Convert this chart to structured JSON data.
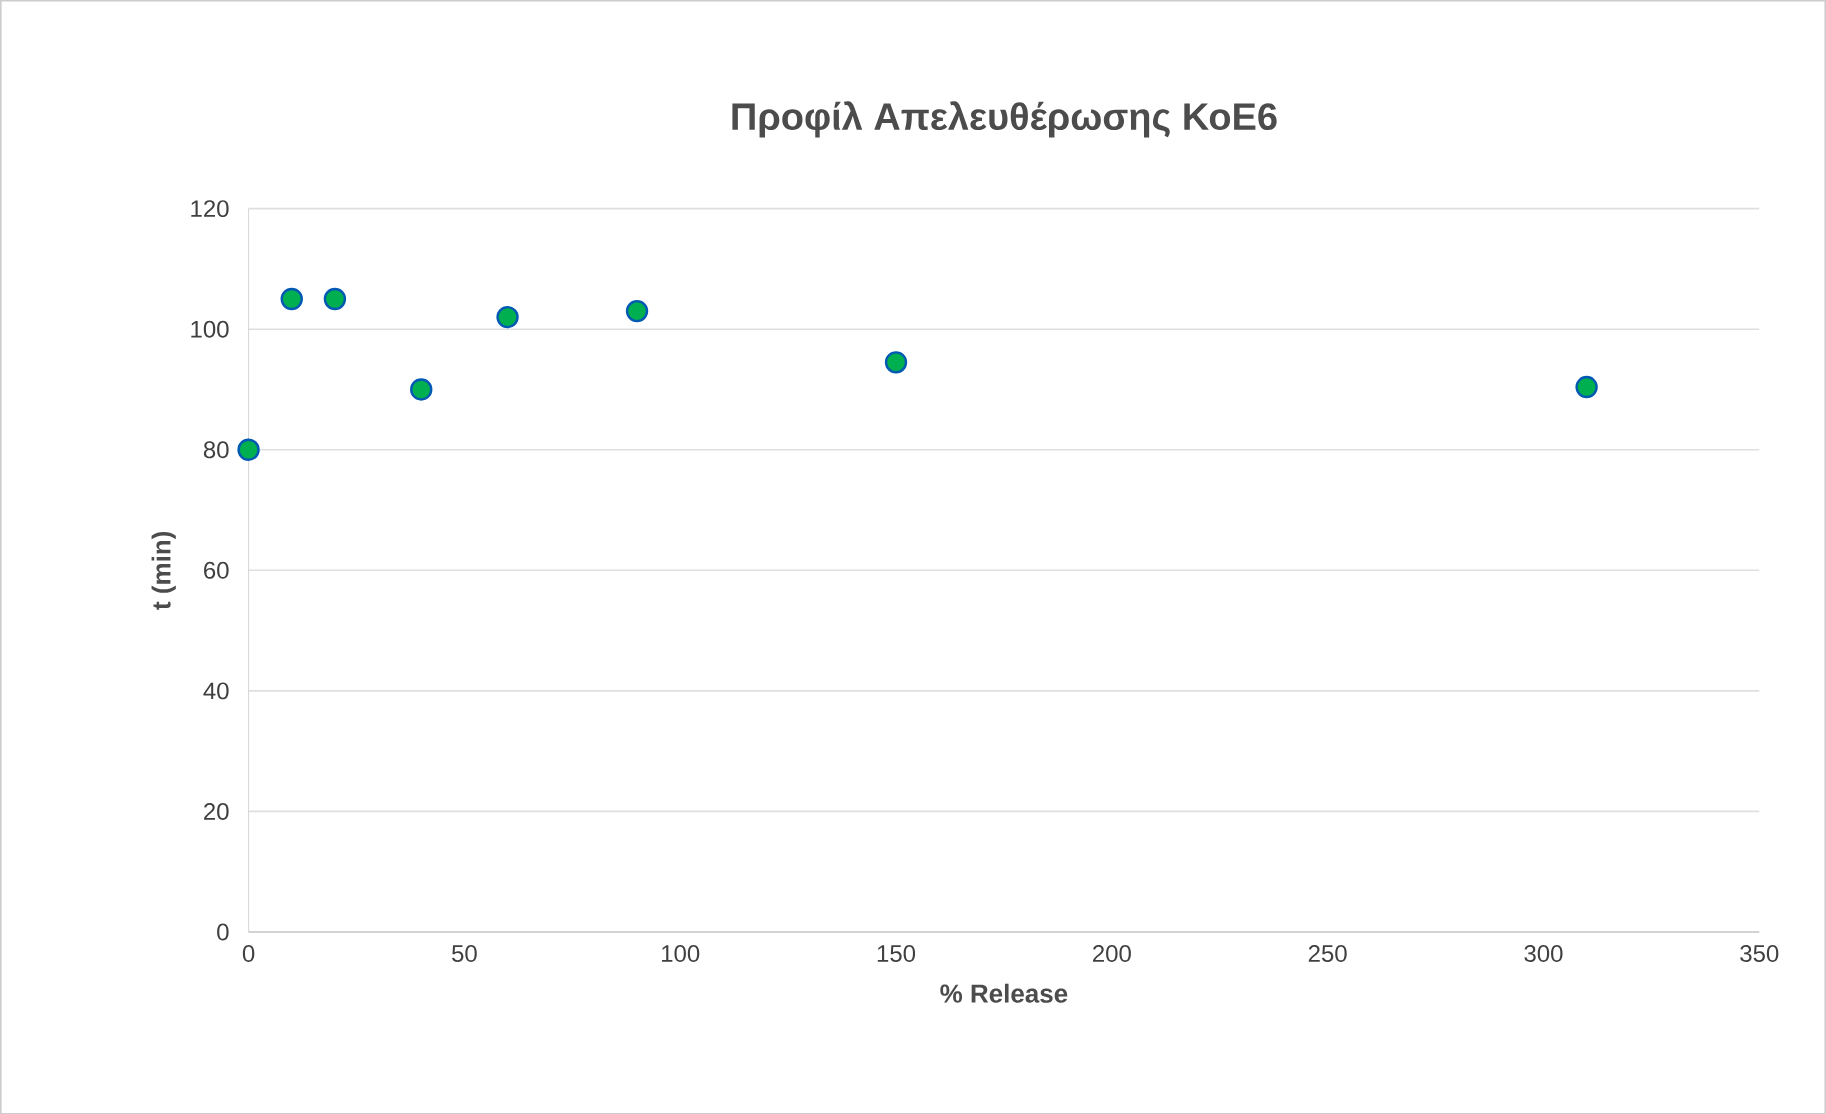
{
  "chart_data": {
    "type": "scatter",
    "title": "Προφίλ Απελευθέρωσης ΚοΕ6",
    "xlabel": "% Release",
    "ylabel": "t (min)",
    "x": [
      0,
      10,
      20,
      40,
      60,
      90,
      150,
      310
    ],
    "series": [
      {
        "color": "#00b050",
        "values": [
          80,
          105,
          105,
          90,
          102,
          103,
          94.5,
          90.4
        ]
      }
    ],
    "xlim": [
      0,
      350
    ],
    "xticks": [
      0,
      50,
      100,
      150,
      200,
      250,
      300,
      350
    ],
    "ylim": [
      0,
      120
    ],
    "yticks": [
      0,
      20,
      40,
      60,
      80,
      100,
      120
    ],
    "grid": "y",
    "marker": "circle"
  }
}
